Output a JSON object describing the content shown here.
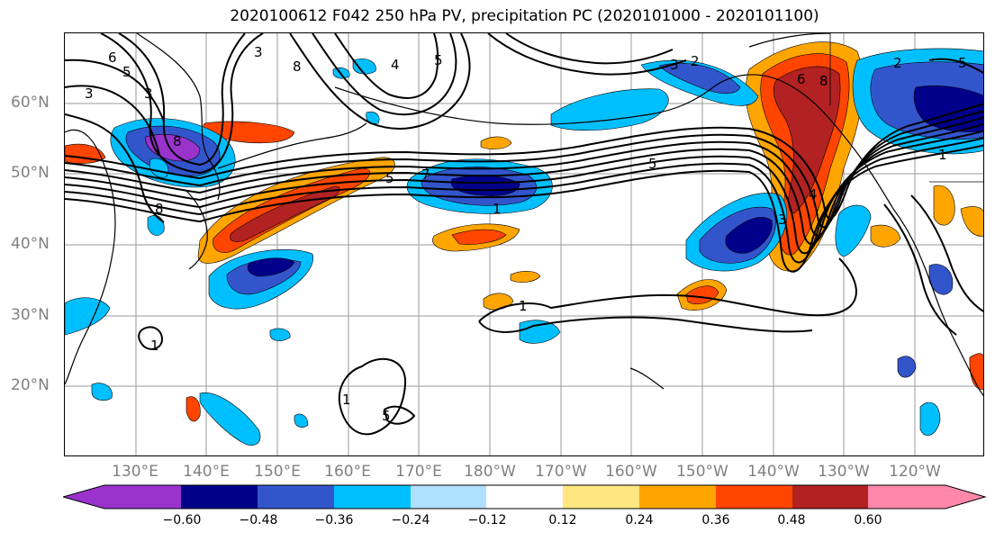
{
  "title": "2020100612 F042 250 hPa PV, precipitation PC (2020101000 - 2020101100)",
  "lat_labels": [
    "60°N",
    "50°N",
    "40°N",
    "30°N",
    "20°N"
  ],
  "lon_labels": [
    "130°E",
    "140°E",
    "150°E",
    "160°E",
    "170°E",
    "180°W",
    "170°W",
    "160°W",
    "150°W",
    "140°W",
    "130°W",
    "120°W"
  ],
  "colorbar": {
    "tick_labels": [
      "−0.60",
      "−0.48",
      "−0.36",
      "−0.24",
      "−0.12",
      "0.12",
      "0.24",
      "0.36",
      "0.48",
      "0.60"
    ],
    "colors": [
      "#9933cc",
      "#00008b",
      "#3355cc",
      "#00bfff",
      "#b0e0ff",
      "#ffffff",
      "#ffe680",
      "#ffa500",
      "#ff4500",
      "#b22222",
      "#ff88aa"
    ]
  },
  "contour_labels": [
    "6",
    "5",
    "3",
    "3",
    "3",
    "8",
    "4",
    "5",
    "3",
    "2",
    "2",
    "5",
    "6",
    "8",
    "8",
    "5",
    "7",
    "1",
    "5",
    "4",
    "3",
    "1",
    "1",
    "1",
    "1",
    "5",
    "8"
  ]
}
